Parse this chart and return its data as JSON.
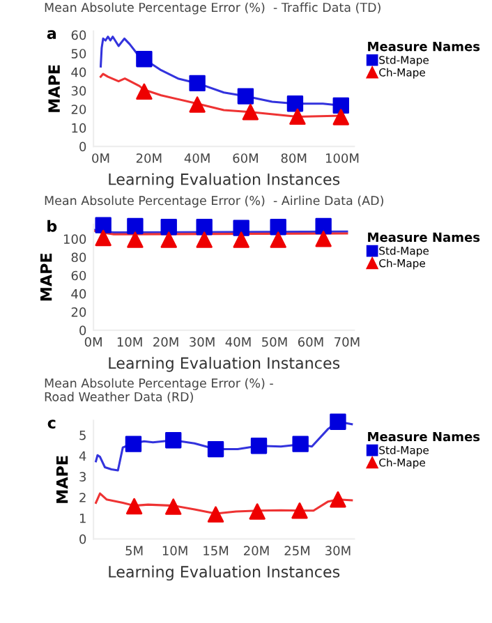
{
  "chart_data": [
    {
      "type": "line",
      "title": "Mean Absolute Percentage Error (%)  - Traffic Data (TD)",
      "xlabel": "Learning Evaluation Instances",
      "ylabel": "MAPE",
      "legend_title": "Measure Names",
      "legend": "right",
      "annotations": [
        "a"
      ],
      "xlim": [
        -3,
        105
      ],
      "ylim": [
        0,
        62
      ],
      "xticks": [
        {
          "value": 0,
          "label": "0M"
        },
        {
          "value": 20,
          "label": "20M"
        },
        {
          "value": 40,
          "label": "40M"
        },
        {
          "value": 60,
          "label": "60M"
        },
        {
          "value": 80,
          "label": "80M"
        },
        {
          "value": 100,
          "label": "100M"
        }
      ],
      "yticks": [
        0,
        10,
        20,
        30,
        40,
        50,
        60
      ],
      "series": [
        {
          "color": "#3333dd",
          "x": [
            0,
            0.4,
            1,
            2,
            3,
            4,
            5,
            7.4,
            9.8,
            12,
            15,
            18,
            25,
            32,
            40,
            51,
            60,
            71,
            80.5,
            92,
            99.5
          ],
          "values": [
            43,
            53,
            58,
            57,
            59,
            57,
            59,
            54,
            58,
            55,
            50,
            47,
            41,
            36.5,
            34,
            29,
            27,
            24,
            23,
            23,
            22
          ]
        },
        {
          "color": "#ee3333",
          "x": [
            0,
            1,
            3,
            7.4,
            10,
            16,
            18,
            25,
            40,
            51,
            62,
            81.5,
            99.5
          ],
          "values": [
            37.5,
            39,
            37.5,
            35,
            36.5,
            32.5,
            30.5,
            27.5,
            23,
            19.5,
            18.5,
            16,
            16.5
          ]
        },
        {
          "type": "scatter",
          "name": "Std-Mape",
          "marker": "square",
          "color": "#0000dd",
          "x": [
            18,
            40,
            60,
            80.5,
            99.5
          ],
          "values": [
            47,
            34,
            27,
            23,
            22
          ]
        },
        {
          "type": "scatter",
          "name": "Ch-Mape",
          "marker": "triangle",
          "color": "#ee0000",
          "x": [
            18,
            40,
            62,
            81.5,
            99.5
          ],
          "values": [
            29.5,
            22.5,
            18.5,
            16,
            15.8
          ]
        }
      ]
    },
    {
      "type": "line",
      "title": "Mean Absolute Percentage Error (%)  - Airline Data (AD)",
      "xlabel": "Learning Evaluation Instances",
      "ylabel": "MAPE",
      "legend_title": "Measure Names",
      "legend": "right",
      "annotations": [
        "b"
      ],
      "xlim": [
        0,
        72
      ],
      "ylim": [
        0,
        116
      ],
      "xticks": [
        {
          "value": 0,
          "label": "0M"
        },
        {
          "value": 10,
          "label": "10M"
        },
        {
          "value": 20,
          "label": "20M"
        },
        {
          "value": 30,
          "label": "30M"
        },
        {
          "value": 40,
          "label": "40M"
        },
        {
          "value": 50,
          "label": "50M"
        },
        {
          "value": 60,
          "label": "60M"
        },
        {
          "value": 70,
          "label": "70M"
        }
      ],
      "yticks": [
        0,
        20,
        40,
        60,
        80,
        100
      ],
      "series": [
        {
          "color": "#3333dd",
          "x": [
            0,
            1.7,
            5.6,
            70
          ],
          "values": [
            110,
            108,
            107,
            108
          ]
        },
        {
          "color": "#ee3333",
          "x": [
            0,
            2.4,
            5.6,
            70
          ],
          "values": [
            109,
            107,
            105,
            106
          ]
        },
        {
          "type": "scatter",
          "name": "Std-Mape",
          "marker": "square",
          "color": "#0000dd",
          "x": [
            2.7,
            11.5,
            20.8,
            30.6,
            40.8,
            51,
            63.5
          ],
          "values": [
            115,
            114,
            113,
            113,
            112,
            113,
            114
          ]
        },
        {
          "type": "scatter",
          "name": "Ch-Mape",
          "marker": "triangle",
          "color": "#ee0000",
          "x": [
            2.7,
            11.5,
            20.8,
            30.6,
            40.8,
            51,
            63.5
          ],
          "values": [
            101,
            99,
            99,
            99,
            99,
            99,
            100
          ]
        }
      ]
    },
    {
      "type": "line",
      "title": "Mean Absolute Percentage Error (%) -\nRoad Weather Data (RD)",
      "xlabel": "Learning Evaluation Instances",
      "ylabel": "MAPE",
      "legend_title": "Measure Names",
      "legend": "right",
      "annotations": [
        "c"
      ],
      "xlim": [
        0,
        32
      ],
      "ylim": [
        0,
        5.7
      ],
      "xticks": [
        {
          "value": 5,
          "label": "5M"
        },
        {
          "value": 10,
          "label": "10M"
        },
        {
          "value": 15,
          "label": "15M"
        },
        {
          "value": 20,
          "label": "20M"
        },
        {
          "value": 25,
          "label": "25M"
        },
        {
          "value": 30,
          "label": "30M"
        }
      ],
      "yticks": [
        0,
        1,
        2,
        3,
        4,
        5
      ],
      "series": [
        {
          "color": "#3333dd",
          "x": [
            0.3,
            0.5,
            0.8,
            1.4,
            2.2,
            3,
            3.6,
            4.9,
            6.2,
            7.3,
            9.8,
            12.4,
            15,
            17.7,
            20.3,
            23,
            25.4,
            26.8,
            28.8,
            30,
            31.7
          ],
          "values": [
            3.74,
            4.03,
            3.95,
            3.45,
            3.35,
            3.3,
            4.4,
            4.6,
            4.7,
            4.65,
            4.75,
            4.6,
            4.32,
            4.32,
            4.48,
            4.45,
            4.55,
            4.45,
            5.3,
            5.65,
            5.52
          ]
        },
        {
          "color": "#ee3333",
          "x": [
            0.3,
            0.8,
            1.6,
            3.6,
            5,
            6.7,
            9.8,
            12.4,
            15,
            17.5,
            20.3,
            23,
            25.4,
            27,
            28.8,
            30,
            31.7
          ],
          "values": [
            1.74,
            2.19,
            1.9,
            1.74,
            1.6,
            1.65,
            1.6,
            1.42,
            1.22,
            1.32,
            1.36,
            1.38,
            1.36,
            1.36,
            1.8,
            1.9,
            1.86
          ]
        },
        {
          "type": "scatter",
          "name": "Std-Mape",
          "marker": "square",
          "color": "#0000dd",
          "x": [
            4.9,
            9.8,
            15,
            20.3,
            25.4,
            30
          ],
          "values": [
            4.57,
            4.75,
            4.32,
            4.48,
            4.57,
            5.64
          ]
        },
        {
          "type": "scatter",
          "name": "Ch-Mape",
          "marker": "triangle",
          "color": "#ee0000",
          "x": [
            5,
            9.8,
            15,
            20.1,
            25.3,
            30
          ],
          "values": [
            1.57,
            1.55,
            1.18,
            1.32,
            1.36,
            1.9
          ]
        }
      ]
    }
  ]
}
